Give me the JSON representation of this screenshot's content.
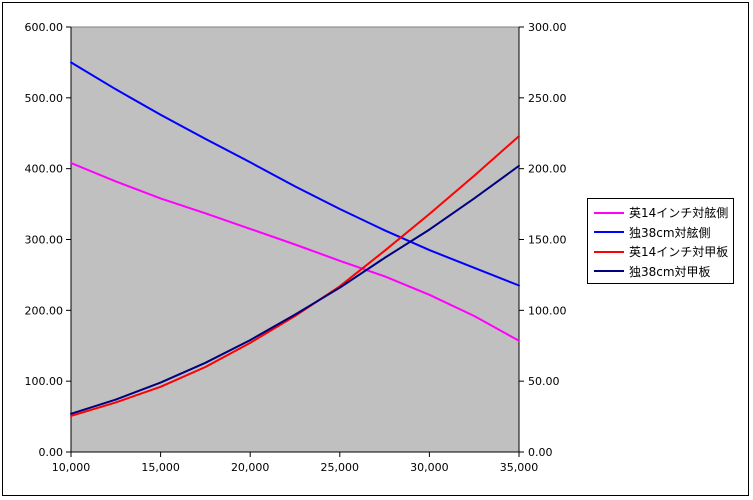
{
  "chart_data": {
    "type": "line",
    "x": [
      10000,
      12500,
      15000,
      17500,
      20000,
      22500,
      25000,
      27500,
      30000,
      32500,
      35000
    ],
    "x_ticks": [
      "10,000",
      "15,000",
      "20,000",
      "25,000",
      "30,000",
      "35,000"
    ],
    "xlim": [
      10000,
      35000
    ],
    "y_left_ticks": [
      "0.00",
      "100.00",
      "200.00",
      "300.00",
      "400.00",
      "500.00",
      "600.00"
    ],
    "ylim_left": [
      0,
      600
    ],
    "y_right_ticks": [
      "0.00",
      "50.00",
      "100.00",
      "150.00",
      "200.00",
      "250.00",
      "300.00"
    ],
    "ylim_right": [
      0,
      300
    ],
    "grid": false,
    "plot_background": "#c0c0c0",
    "legend_position": "right",
    "series": [
      {
        "name": "英14インチ対舷側",
        "axis": "left",
        "color": "#ff00ff",
        "values": [
          408,
          382,
          358,
          337,
          315,
          293,
          270,
          248,
          222,
          192,
          157
        ]
      },
      {
        "name": "独38cm対舷側",
        "axis": "left",
        "color": "#0000ff",
        "values": [
          550,
          512,
          476,
          442,
          409,
          375,
          343,
          313,
          285,
          260,
          235
        ]
      },
      {
        "name": "英14インチ対甲板",
        "axis": "right",
        "color": "#ff0000",
        "values": [
          25.5,
          35,
          46,
          60,
          77,
          96,
          117,
          142,
          168,
          195,
          223
        ]
      },
      {
        "name": "独38cm対甲板",
        "axis": "right",
        "color": "#000080",
        "values": [
          27,
          37,
          49,
          63,
          79,
          97,
          116,
          137,
          157,
          179,
          202
        ]
      }
    ]
  }
}
